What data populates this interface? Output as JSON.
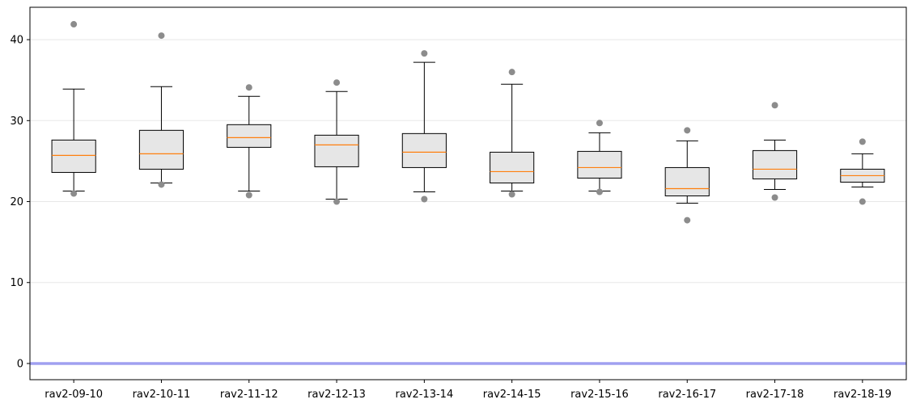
{
  "chart_data": {
    "type": "boxplot",
    "title": "",
    "xlabel": "",
    "ylabel": "",
    "ylim": [
      -2,
      44
    ],
    "yticks": [
      0,
      10,
      20,
      30,
      40
    ],
    "grid": "horizontal",
    "reference_line": {
      "y": 0,
      "color": "#a0a0f0"
    },
    "colors": {
      "box_fill": "#e6e6e6",
      "median": "#ff7f0e",
      "outlier": "#8c8c8c",
      "stroke": "#000000"
    },
    "categories": [
      "rav2-09-10",
      "rav2-10-11",
      "rav2-11-12",
      "rav2-12-13",
      "rav2-13-14",
      "rav2-14-15",
      "rav2-15-16",
      "rav2-16-17",
      "rav2-17-18",
      "rav2-18-19"
    ],
    "boxes": [
      {
        "whislo": 21.3,
        "q1": 23.6,
        "med": 25.7,
        "q3": 27.6,
        "whishi": 33.9,
        "fliers": [
          21.0,
          41.9
        ]
      },
      {
        "whislo": 22.3,
        "q1": 24.0,
        "med": 25.9,
        "q3": 28.8,
        "whishi": 34.2,
        "fliers": [
          22.1,
          40.5
        ]
      },
      {
        "whislo": 21.3,
        "q1": 26.7,
        "med": 27.9,
        "q3": 29.5,
        "whishi": 33.0,
        "fliers": [
          20.8,
          34.1
        ]
      },
      {
        "whislo": 20.3,
        "q1": 24.3,
        "med": 27.0,
        "q3": 28.2,
        "whishi": 33.6,
        "fliers": [
          20.0,
          34.7
        ]
      },
      {
        "whislo": 21.2,
        "q1": 24.2,
        "med": 26.1,
        "q3": 28.4,
        "whishi": 37.2,
        "fliers": [
          20.3,
          38.3
        ]
      },
      {
        "whislo": 21.3,
        "q1": 22.3,
        "med": 23.7,
        "q3": 26.1,
        "whishi": 34.5,
        "fliers": [
          20.9,
          36.0
        ]
      },
      {
        "whislo": 21.3,
        "q1": 22.9,
        "med": 24.2,
        "q3": 26.2,
        "whishi": 28.5,
        "fliers": [
          21.2,
          29.7
        ]
      },
      {
        "whislo": 19.8,
        "q1": 20.7,
        "med": 21.6,
        "q3": 24.2,
        "whishi": 27.5,
        "fliers": [
          17.7,
          28.8
        ]
      },
      {
        "whislo": 21.5,
        "q1": 22.8,
        "med": 24.0,
        "q3": 26.3,
        "whishi": 27.6,
        "fliers": [
          20.5,
          31.9
        ]
      },
      {
        "whislo": 21.8,
        "q1": 22.4,
        "med": 23.2,
        "q3": 24.0,
        "whishi": 25.9,
        "fliers": [
          20.0,
          27.4
        ]
      }
    ]
  }
}
